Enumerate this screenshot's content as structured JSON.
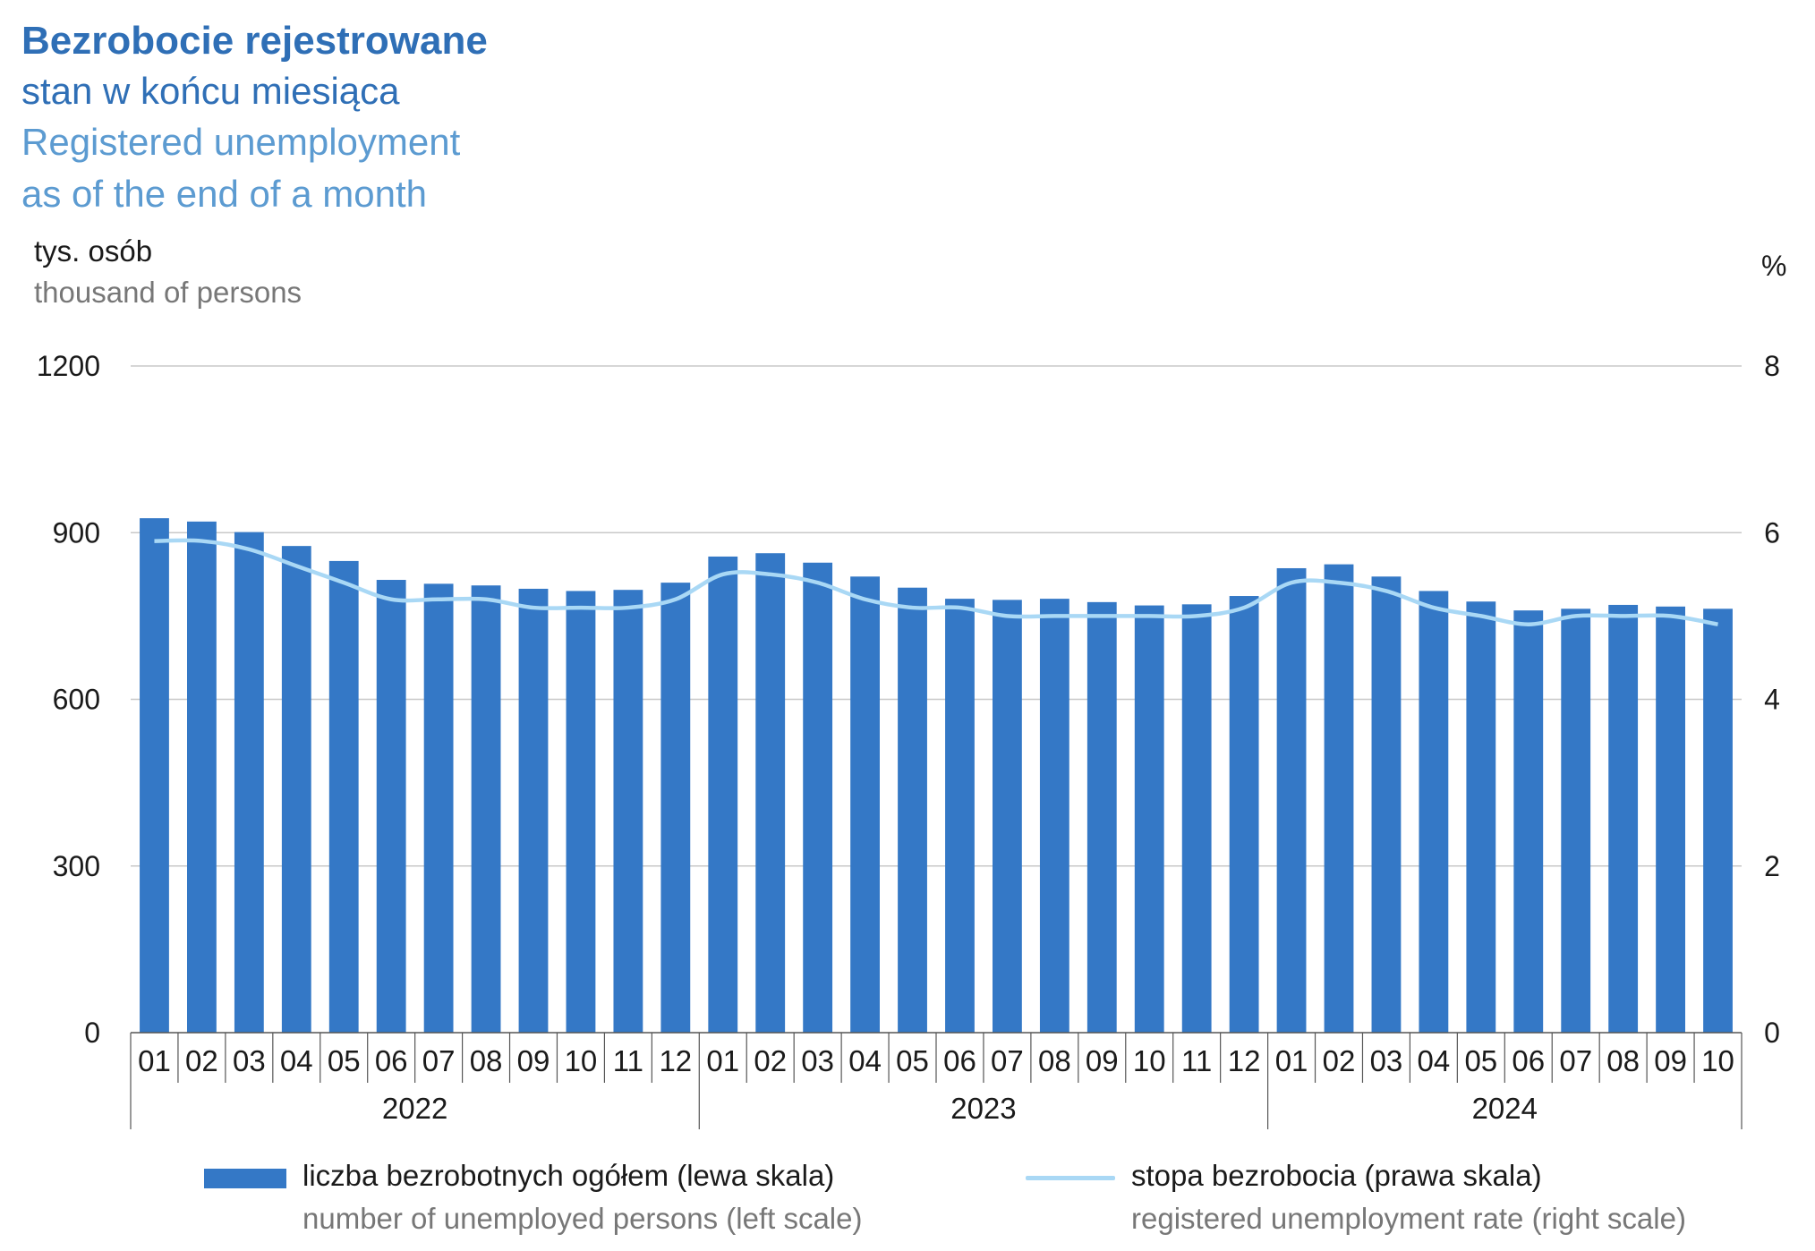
{
  "titles": {
    "title_pl": "Bezrobocie rejestrowane",
    "subtitle_pl": "stan w końcu miesiąca",
    "title_en": "Registered unemployment",
    "subtitle_en": "as of the end of a month"
  },
  "axes": {
    "left_unit_pl": "tys. osób",
    "left_unit_en": "thousand of persons",
    "right_unit": "%"
  },
  "legend": {
    "bar_pl": "liczba bezrobotnych ogółem (lewa skala)",
    "bar_en": "number of unemployed persons (left scale)",
    "line_pl": "stopa bezrobocia (prawa skala)",
    "line_en": "registered unemployment rate (right scale)"
  },
  "colors": {
    "bar": "#3478c6",
    "line": "#a9d8f5",
    "grid": "#c8c8c8",
    "axis": "#555555"
  },
  "chart_data": {
    "type": "bar+line",
    "left_axis": {
      "ylim": [
        0,
        1200
      ],
      "ticks": [
        "0",
        "300",
        "600",
        "900",
        "1200"
      ]
    },
    "right_axis": {
      "ylim": [
        0,
        8
      ],
      "ticks": [
        "0",
        "2",
        "4",
        "6",
        "8"
      ]
    },
    "grid": true,
    "legend_position": "bottom",
    "categories": [
      "01",
      "02",
      "03",
      "04",
      "05",
      "06",
      "07",
      "08",
      "09",
      "10",
      "11",
      "12",
      "01",
      "02",
      "03",
      "04",
      "05",
      "06",
      "07",
      "08",
      "09",
      "10",
      "11",
      "12",
      "01",
      "02",
      "03",
      "04",
      "05",
      "06",
      "07",
      "08",
      "09",
      "10"
    ],
    "groups": [
      {
        "label": "2022",
        "count": 12
      },
      {
        "label": "2023",
        "count": 12
      },
      {
        "label": "2024",
        "count": 10
      }
    ],
    "series": [
      {
        "kind": "bar",
        "axis": "left",
        "values": [
          926,
          920,
          901,
          876,
          849,
          815,
          808,
          805,
          799,
          795,
          797,
          810,
          857,
          863,
          846,
          821,
          801,
          781,
          779,
          781,
          775,
          769,
          771,
          786,
          836,
          843,
          821,
          795,
          776,
          760,
          763,
          770,
          767,
          763
        ]
      },
      {
        "kind": "line",
        "axis": "right",
        "values": [
          5.9,
          5.9,
          5.8,
          5.6,
          5.4,
          5.2,
          5.2,
          5.2,
          5.1,
          5.1,
          5.1,
          5.2,
          5.5,
          5.5,
          5.4,
          5.2,
          5.1,
          5.1,
          5.0,
          5.0,
          5.0,
          5.0,
          5.0,
          5.1,
          5.4,
          5.4,
          5.3,
          5.1,
          5.0,
          4.9,
          5.0,
          5.0,
          5.0,
          4.9
        ]
      }
    ]
  }
}
